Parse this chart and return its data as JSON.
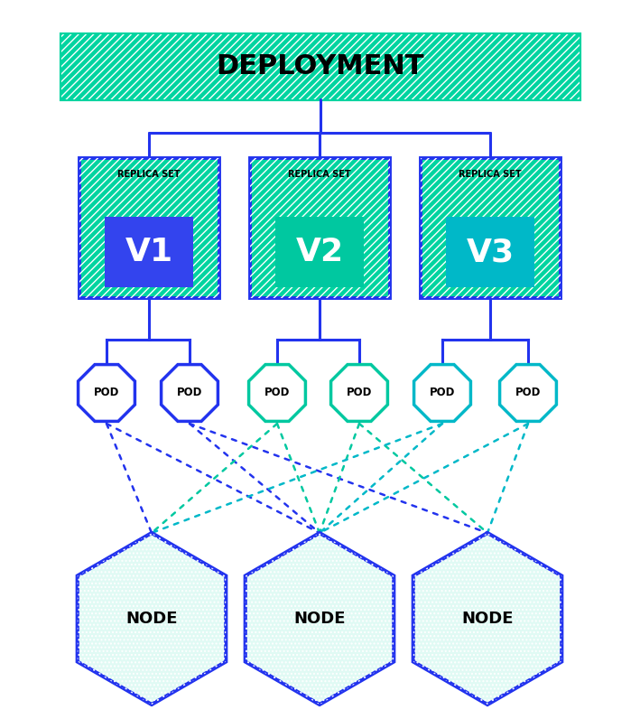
{
  "bg_color": "#ffffff",
  "teal": "#00d4a0",
  "blue": "#2233ee",
  "dark_teal": "#00b8a0",
  "rs_inner_colors": [
    "#3344ee",
    "#00c8a0",
    "#00b8c8"
  ],
  "rs_versions": [
    "V1",
    "V2",
    "V3"
  ],
  "pod_colors": [
    "#2233ee",
    "#2233ee",
    "#00c8a0",
    "#00c8a0",
    "#00b8c8",
    "#00b8c8"
  ],
  "node_border": "#2233ee",
  "node_hatch_color": "#00d4a0",
  "deploy_text": "DEPLOYMENT",
  "rs_label": "REPLICA SET"
}
